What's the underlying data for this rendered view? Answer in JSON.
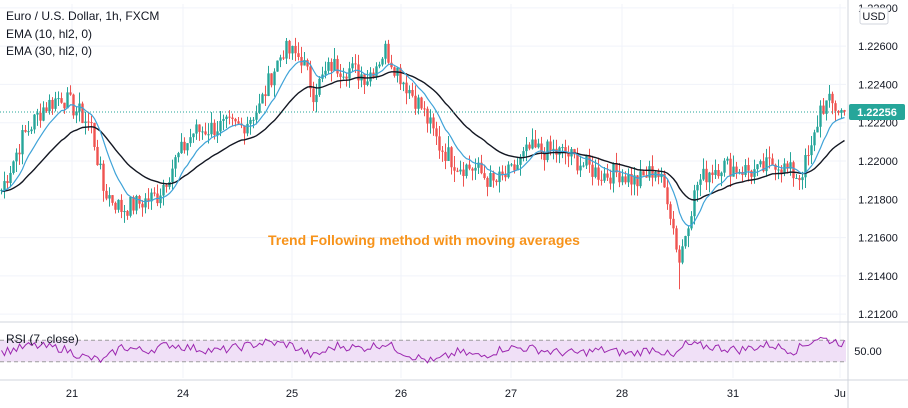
{
  "header": {
    "symbol_line": "Euro / U.S. Dollar, 1h, FXCM",
    "ema10_label": "EMA (10, hl2, 0)",
    "ema30_label": "EMA (30, hl2, 0)",
    "rsi_label": "RSI (7, close)",
    "currency": "USD"
  },
  "annotation": "Trend Following method with moving averages",
  "colors": {
    "up": "#26a69a",
    "down": "#ef5350",
    "ema10": "#3fa3d8",
    "ema30": "#131722",
    "rsi_line": "#9c27b0",
    "rsi_band": "#f0e0f7",
    "annotation": "#f7931a",
    "current_price_bg": "#26a69a"
  },
  "chart_data": [
    {
      "type": "candlestick",
      "title": "Euro / U.S. Dollar, 1h, FXCM",
      "ylim": [
        1.2118,
        1.2282
      ],
      "y_ticks": [
        "1.22800",
        "1.22600",
        "1.22400",
        "1.22200",
        "1.22000",
        "1.21800",
        "1.21600",
        "1.21400",
        "1.21200"
      ],
      "current_price": "1.22256",
      "x_tick_labels": [
        "21",
        "24",
        "25",
        "26",
        "27",
        "28",
        "31",
        "Ju"
      ],
      "anchors": [
        [
          0,
          1.2185
        ],
        [
          7,
          1.2212
        ],
        [
          14,
          1.2228
        ],
        [
          20,
          1.2234
        ],
        [
          26,
          1.2225
        ],
        [
          30,
          1.2218
        ],
        [
          34,
          1.2185
        ],
        [
          40,
          1.2175
        ],
        [
          46,
          1.2178
        ],
        [
          52,
          1.2182
        ],
        [
          58,
          1.22
        ],
        [
          64,
          1.2215
        ],
        [
          72,
          1.2218
        ],
        [
          80,
          1.2218
        ],
        [
          86,
          1.2228
        ],
        [
          90,
          1.2245
        ],
        [
          94,
          1.2258
        ],
        [
          100,
          1.2254
        ],
        [
          104,
          1.2236
        ],
        [
          110,
          1.225
        ],
        [
          116,
          1.2248
        ],
        [
          122,
          1.2244
        ],
        [
          128,
          1.2258
        ],
        [
          134,
          1.2242
        ],
        [
          140,
          1.2228
        ],
        [
          146,
          1.2208
        ],
        [
          152,
          1.2198
        ],
        [
          158,
          1.2196
        ],
        [
          164,
          1.2188
        ],
        [
          170,
          1.2194
        ],
        [
          176,
          1.2206
        ],
        [
          182,
          1.2205
        ],
        [
          188,
          1.2204
        ],
        [
          194,
          1.2198
        ],
        [
          200,
          1.2193
        ],
        [
          206,
          1.2194
        ],
        [
          212,
          1.2189
        ],
        [
          218,
          1.2196
        ],
        [
          222,
          1.2182
        ],
        [
          226,
          1.2148
        ],
        [
          229,
          1.217
        ],
        [
          232,
          1.2188
        ],
        [
          236,
          1.2195
        ],
        [
          240,
          1.2198
        ],
        [
          246,
          1.2196
        ],
        [
          252,
          1.2194
        ],
        [
          258,
          1.22
        ],
        [
          262,
          1.2195
        ],
        [
          266,
          1.2192
        ],
        [
          270,
          1.2205
        ],
        [
          273,
          1.2228
        ],
        [
          276,
          1.223
        ],
        [
          281,
          1.2225
        ]
      ],
      "series": [
        {
          "name": "EMA (10, hl2, 0)"
        },
        {
          "name": "EMA (30, hl2, 0)"
        }
      ]
    },
    {
      "type": "line",
      "title": "RSI (7, close)",
      "ylim": [
        0,
        100
      ],
      "y_ticks": [
        "50.00"
      ],
      "band": [
        30,
        70
      ],
      "anchors": [
        [
          0,
          48
        ],
        [
          10,
          60
        ],
        [
          20,
          55
        ],
        [
          28,
          38
        ],
        [
          34,
          32
        ],
        [
          40,
          58
        ],
        [
          48,
          50
        ],
        [
          56,
          62
        ],
        [
          64,
          55
        ],
        [
          72,
          50
        ],
        [
          80,
          58
        ],
        [
          88,
          66
        ],
        [
          96,
          62
        ],
        [
          104,
          40
        ],
        [
          112,
          60
        ],
        [
          120,
          55
        ],
        [
          128,
          64
        ],
        [
          136,
          42
        ],
        [
          144,
          30
        ],
        [
          152,
          48
        ],
        [
          160,
          40
        ],
        [
          168,
          56
        ],
        [
          176,
          55
        ],
        [
          184,
          48
        ],
        [
          192,
          46
        ],
        [
          200,
          52
        ],
        [
          210,
          45
        ],
        [
          218,
          55
        ],
        [
          224,
          38
        ],
        [
          228,
          62
        ],
        [
          236,
          58
        ],
        [
          246,
          52
        ],
        [
          256,
          62
        ],
        [
          264,
          50
        ],
        [
          272,
          74
        ],
        [
          276,
          70
        ],
        [
          281,
          64
        ]
      ]
    }
  ]
}
